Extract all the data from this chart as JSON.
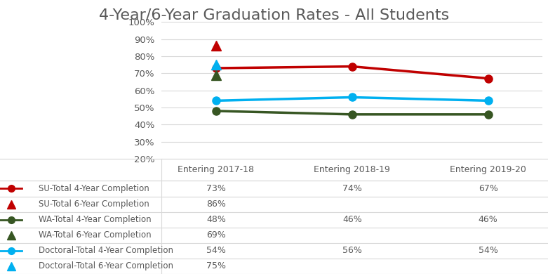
{
  "title": "4-Year/6-Year Graduation Rates - All Students",
  "x_labels": [
    "Entering 2017-18",
    "Entering 2018-19",
    "Entering 2019-20"
  ],
  "series": {
    "SU_4year": {
      "values": [
        73,
        74,
        67
      ],
      "color": "#c00000",
      "marker": "o",
      "lw": 2.5
    },
    "SU_6year": {
      "values": [
        86
      ],
      "color": "#c00000",
      "marker": "^"
    },
    "WA_4year": {
      "values": [
        48,
        46,
        46
      ],
      "color": "#375623",
      "marker": "o",
      "lw": 2.5
    },
    "WA_6year": {
      "values": [
        69
      ],
      "color": "#375623",
      "marker": "^"
    },
    "Doc_4year": {
      "values": [
        54,
        56,
        54
      ],
      "color": "#00b0f0",
      "marker": "o",
      "lw": 2.5
    },
    "Doc_6year": {
      "values": [
        75
      ],
      "color": "#00b0f0",
      "marker": "^"
    }
  },
  "legend_entries": [
    {
      "label": "SU-Total 4-Year Completion",
      "color": "#c00000",
      "marker": "o",
      "has_line": true
    },
    {
      "label": "SU-Total 6-Year Completion",
      "color": "#c00000",
      "marker": "^",
      "has_line": false
    },
    {
      "label": "WA-Total 4-Year Completion",
      "color": "#375623",
      "marker": "o",
      "has_line": true
    },
    {
      "label": "WA-Total 6-Year Completion",
      "color": "#375623",
      "marker": "^",
      "has_line": false
    },
    {
      "label": "Doctoral-Total 4-Year Completion",
      "color": "#00b0f0",
      "marker": "o",
      "has_line": true
    },
    {
      "label": "Doctoral-Total 6-Year Completion",
      "color": "#00b0f0",
      "marker": "^",
      "has_line": false
    }
  ],
  "table_data": [
    [
      "73%",
      "74%",
      "67%"
    ],
    [
      "86%",
      "",
      ""
    ],
    [
      "48%",
      "46%",
      "46%"
    ],
    [
      "69%",
      "",
      ""
    ],
    [
      "54%",
      "56%",
      "54%"
    ],
    [
      "75%",
      "",
      ""
    ]
  ],
  "ylim": [
    20,
    100
  ],
  "yticks": [
    20,
    30,
    40,
    50,
    60,
    70,
    80,
    90,
    100
  ],
  "title_color": "#595959",
  "title_fontsize": 16,
  "label_color": "#595959",
  "grid_color": "#d9d9d9",
  "marker_size": 8,
  "bg_color": "#ffffff"
}
